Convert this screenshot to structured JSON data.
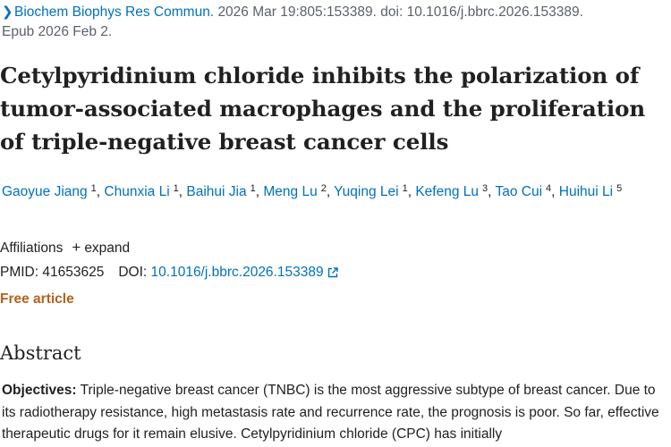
{
  "citation": {
    "journal": "Biochem Biophys Res Commun.",
    "details": "2026 Mar 19:805:153389. doi: 10.1016/j.bbrc.2026.153389.",
    "epub": "Epub 2026 Feb 2."
  },
  "article": {
    "title": "Cetylpyridinium chloride inhibits the polarization of tumor-associated macrophages and the proliferation of triple-negative breast cancer cells"
  },
  "authors": [
    {
      "name": "Gaoyue Jiang",
      "sup": "1"
    },
    {
      "name": "Chunxia Li",
      "sup": "1"
    },
    {
      "name": "Baihui Jia",
      "sup": "1"
    },
    {
      "name": "Meng Lu",
      "sup": "2"
    },
    {
      "name": "Yuqing Lei",
      "sup": "1"
    },
    {
      "name": "Kefeng Lu",
      "sup": "3"
    },
    {
      "name": "Tao Cui",
      "sup": "4"
    },
    {
      "name": "Huihui Li",
      "sup": "5"
    }
  ],
  "affiliations": {
    "label": "Affiliations",
    "expand_label": "expand"
  },
  "identifiers": {
    "pmid_label": "PMID:",
    "pmid": "41653625",
    "doi_label": "DOI:",
    "doi": "10.1016/j.bbrc.2026.153389"
  },
  "free_article_label": "Free article",
  "abstract": {
    "heading": "Abstract",
    "objectives_label": "Objectives:",
    "text": "Triple-negative breast cancer (TNBC) is the most aggressive subtype of breast cancer. Due to its radiotherapy resistance, high metastasis rate and recurrence rate, the prognosis is poor. So far, effective therapeutic drugs for it remain elusive. Cetylpyridinium chloride (CPC) has initially"
  },
  "colors": {
    "link": "#0071bc",
    "free_article": "#b5611e",
    "meta_text": "#5b616b",
    "body_text": "#212121"
  }
}
